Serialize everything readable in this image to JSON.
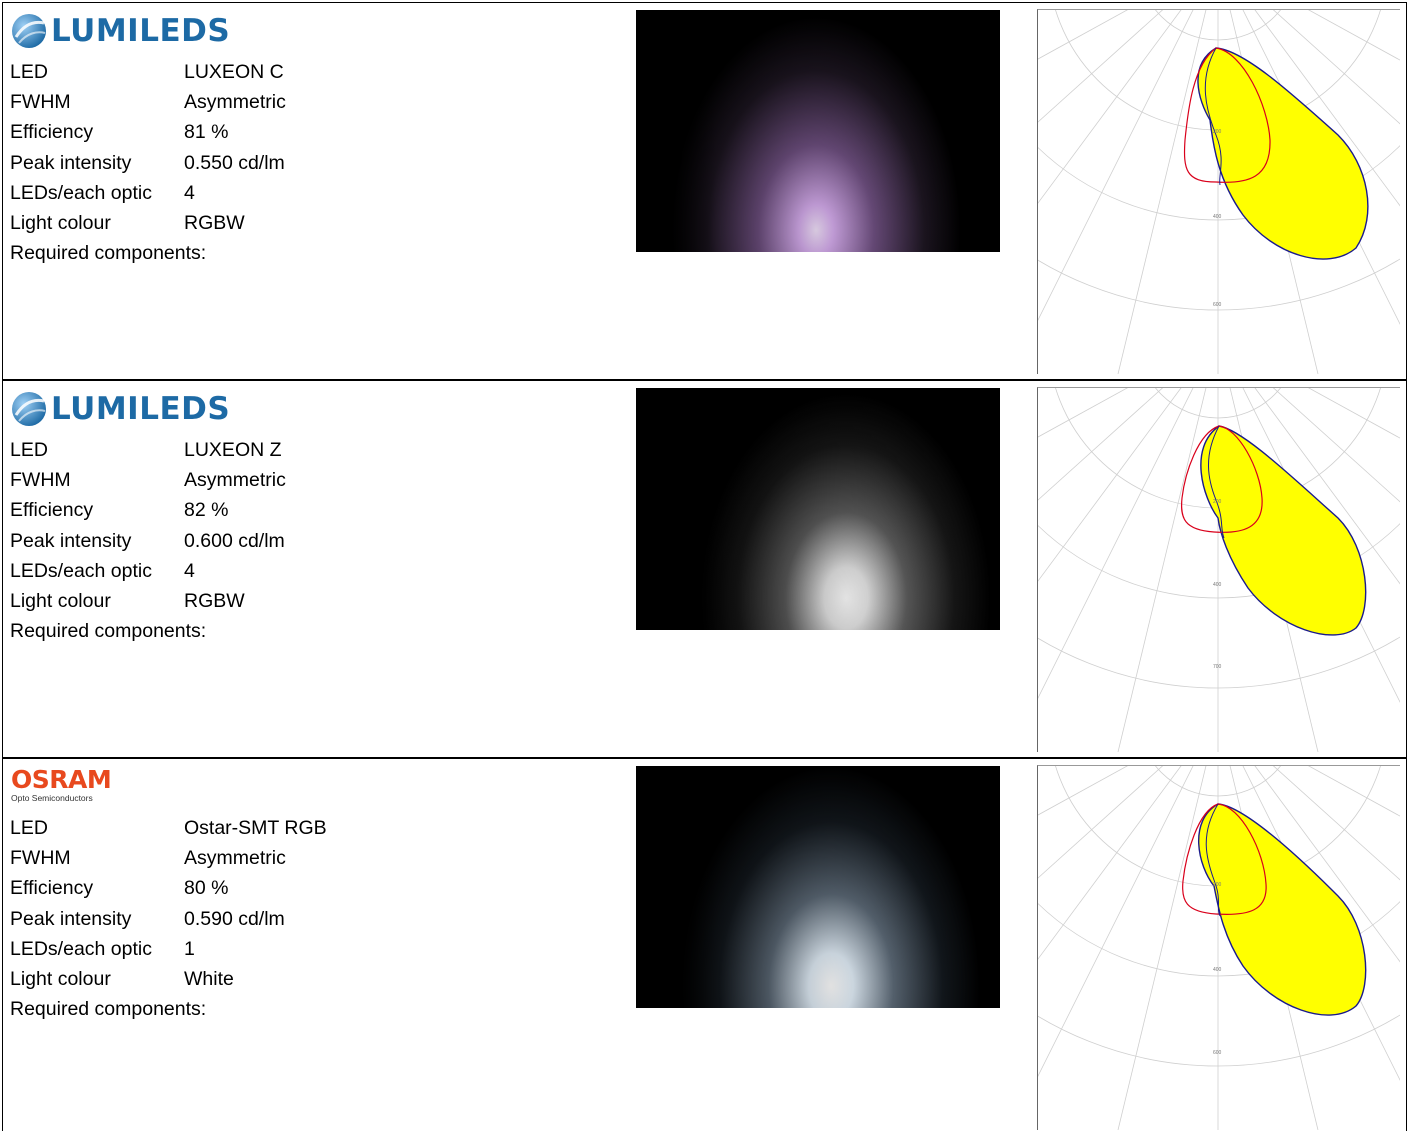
{
  "rows": [
    {
      "brand": "LUMILEDS",
      "brand_sub": "",
      "brand_color": "#1d6aa5",
      "labels": {
        "led": "LED",
        "fwhm": "FWHM",
        "efficiency": "Efficiency",
        "peak": "Peak intensity",
        "leds_per_optic": "LEDs/each optic",
        "light_colour": "Light colour",
        "required": "Required components:"
      },
      "values": {
        "led": "LUXEON C",
        "fwhm": "Asymmetric",
        "efficiency": "81 %",
        "peak": "0.550 cd/lm",
        "leds_per_optic": "4",
        "light_colour": "RGBW"
      },
      "beam_color": "#e9c6ff",
      "polar_ring_labels": [
        "200",
        "400",
        "600"
      ]
    },
    {
      "brand": "LUMILEDS",
      "brand_sub": "",
      "brand_color": "#1d6aa5",
      "labels": {
        "led": "LED",
        "fwhm": "FWHM",
        "efficiency": "Efficiency",
        "peak": "Peak intensity",
        "leds_per_optic": "LEDs/each optic",
        "light_colour": "Light colour",
        "required": "Required components:"
      },
      "values": {
        "led": "LUXEON Z",
        "fwhm": "Asymmetric",
        "efficiency": "82 %",
        "peak": "0.600 cd/lm",
        "leds_per_optic": "4",
        "light_colour": "RGBW"
      },
      "beam_color": "#ffffff",
      "polar_ring_labels": [
        "200",
        "400",
        "700"
      ]
    },
    {
      "brand": "OSRAM",
      "brand_sub": "Opto Semiconductors",
      "brand_color": "#e8491e",
      "labels": {
        "led": "LED",
        "fwhm": "FWHM",
        "efficiency": "Efficiency",
        "peak": "Peak intensity",
        "leds_per_optic": "LEDs/each optic",
        "light_colour": "Light colour",
        "required": "Required components:"
      },
      "values": {
        "led": "Ostar-SMT RGB",
        "fwhm": "Asymmetric",
        "efficiency": "80 %",
        "peak": "0.590 cd/lm",
        "leds_per_optic": "1",
        "light_colour": "White"
      },
      "beam_color": "#f2f8ff",
      "polar_ring_labels": [
        "200",
        "400",
        "600"
      ]
    }
  ],
  "polar_colors": {
    "fill": "#ffff00",
    "c0_curve": "#1a1a8c",
    "c90_curve": "#d9001b",
    "grid": "#cfcfcf"
  },
  "icons": {
    "lumileds_logo": "lumileds-globe-icon"
  }
}
